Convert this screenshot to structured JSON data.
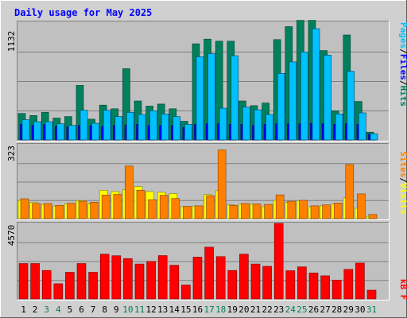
{
  "title": "Daily usage for May 2025",
  "panels": {
    "top": {
      "max_label": "1132",
      "legend": [
        "Pages",
        "/",
        "Files",
        "/",
        "Hits"
      ]
    },
    "mid": {
      "max_label": "323",
      "legend": [
        "Sites",
        "/",
        "Visits"
      ]
    },
    "bottom": {
      "max_label": "4570",
      "legend": [
        "kB F"
      ]
    }
  },
  "colors": {
    "hits": "#00805c",
    "files": "#0000ff",
    "pages": "#00c0ff",
    "sites": "#ff8000",
    "visits": "#ffff00",
    "kbytes": "#ff0000",
    "title": "#0000ff",
    "day": "#000000",
    "weekend": "#00805c",
    "chart_bg": "#c0c0c0",
    "gridline": "#808080",
    "frame_bg": "#d0d0d0",
    "legend_sep": "#000000"
  },
  "chart_data": {
    "type": "bar",
    "title": "Daily usage for May 2025",
    "categories": [
      "1",
      "2",
      "3",
      "4",
      "5",
      "6",
      "7",
      "8",
      "9",
      "10",
      "11",
      "12",
      "13",
      "14",
      "15",
      "16",
      "17",
      "18",
      "19",
      "20",
      "21",
      "22",
      "23",
      "24",
      "25",
      "26",
      "27",
      "28",
      "29",
      "30",
      "31"
    ],
    "weekend_days": [
      "3",
      "4",
      "10",
      "11",
      "17",
      "18",
      "24",
      "25",
      "31"
    ],
    "x": [
      1,
      2,
      3,
      4,
      5,
      6,
      7,
      8,
      9,
      10,
      11,
      12,
      13,
      14,
      15,
      16,
      17,
      18,
      19,
      20,
      21,
      22,
      23,
      24,
      25,
      26,
      27,
      28,
      29,
      30,
      31
    ],
    "panels": [
      {
        "name": "top",
        "ymax": 1132,
        "series": [
          {
            "name": "Hits",
            "values": [
              255,
              235,
              265,
              210,
              225,
              525,
              200,
              335,
              300,
              685,
              375,
              325,
              345,
              300,
              180,
              925,
              970,
              950,
              950,
              375,
              330,
              355,
              965,
              1090,
              1150,
              1150,
              860,
              280,
              1010,
              370,
              75
            ]
          },
          {
            "name": "Files",
            "values": [
              150,
              140,
              150,
              130,
              125,
              140,
              135,
              130,
              140,
              145,
              150,
              140,
              140,
              140,
              120,
              150,
              155,
              155,
              150,
              150,
              140,
              150,
              155,
              155,
              155,
              160,
              155,
              150,
              155,
              150,
              55
            ]
          },
          {
            "name": "Pages",
            "values": [
              195,
              175,
              175,
              155,
              140,
              285,
              160,
              285,
              225,
              265,
              245,
              280,
              250,
              225,
              150,
              800,
              830,
              305,
              810,
              315,
              290,
              245,
              640,
              750,
              845,
              1070,
              815,
              250,
              660,
              260,
              60
            ]
          }
        ]
      },
      {
        "name": "mid",
        "ymax": 323,
        "series": [
          {
            "name": "Visits",
            "values": [
              80,
              70,
              62,
              55,
              65,
              79,
              65,
              124,
              118,
              127,
              140,
              118,
              115,
              109,
              52,
              55,
              105,
              122,
              60,
              63,
              63,
              52,
              80,
              71,
              79,
              52,
              56,
              63,
              91,
              45,
              10
            ]
          },
          {
            "name": "Sites",
            "values": [
              87,
              66,
              66,
              58,
              67,
              76,
              72,
              103,
              106,
              230,
              124,
              83,
              102,
              88,
              54,
              56,
              100,
              300,
              58,
              66,
              64,
              62,
              104,
              76,
              80,
              56,
              60,
              68,
              236,
              108,
              18
            ]
          }
        ]
      },
      {
        "name": "bottom",
        "ymax": 4570,
        "series": [
          {
            "name": "kB F",
            "values": [
              2140,
              2140,
              1720,
              920,
              1610,
              2140,
              1610,
              2710,
              2610,
              2440,
              2110,
              2270,
              2620,
              2040,
              840,
              2530,
              3130,
              2560,
              1720,
              2710,
              2110,
              1970,
              4570,
              1710,
              1940,
              1570,
              1400,
              1140,
              1790,
              2170,
              530
            ]
          }
        ]
      }
    ]
  }
}
